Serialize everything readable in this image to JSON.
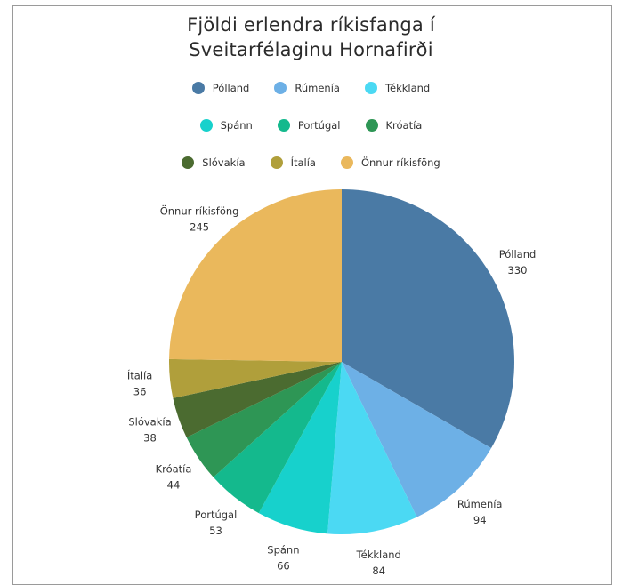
{
  "chart_data": {
    "type": "pie",
    "title_lines": [
      "Fjöldi erlendra ríkisfanga í",
      "Sveitarfélaginu Hornafirði"
    ],
    "legend_placement": "top",
    "slices": [
      {
        "name": "Pólland",
        "value": 330,
        "color": "#4a7aa5"
      },
      {
        "name": "Rúmenía",
        "value": 94,
        "color": "#6db0e6"
      },
      {
        "name": "Tékkland",
        "value": 84,
        "color": "#4bd9f3"
      },
      {
        "name": "Spánn",
        "value": 66,
        "color": "#17d1cc"
      },
      {
        "name": "Portúgal",
        "value": 53,
        "color": "#14b98d"
      },
      {
        "name": "Króatía",
        "value": 44,
        "color": "#2e9655"
      },
      {
        "name": "Slóvakía",
        "value": 38,
        "color": "#4b6b30"
      },
      {
        "name": "Ítalía",
        "value": 36,
        "color": "#b09f3b"
      },
      {
        "name": "Önnur ríkisföng",
        "value": 245,
        "color": "#eab85c"
      }
    ],
    "legend_rows": [
      [
        "Pólland",
        "Rúmenía",
        "Tékkland"
      ],
      [
        "Spánn",
        "Portúgal",
        "Króatía"
      ],
      [
        "Slóvakía",
        "Ítalía",
        "Önnur ríkisföng"
      ]
    ]
  }
}
